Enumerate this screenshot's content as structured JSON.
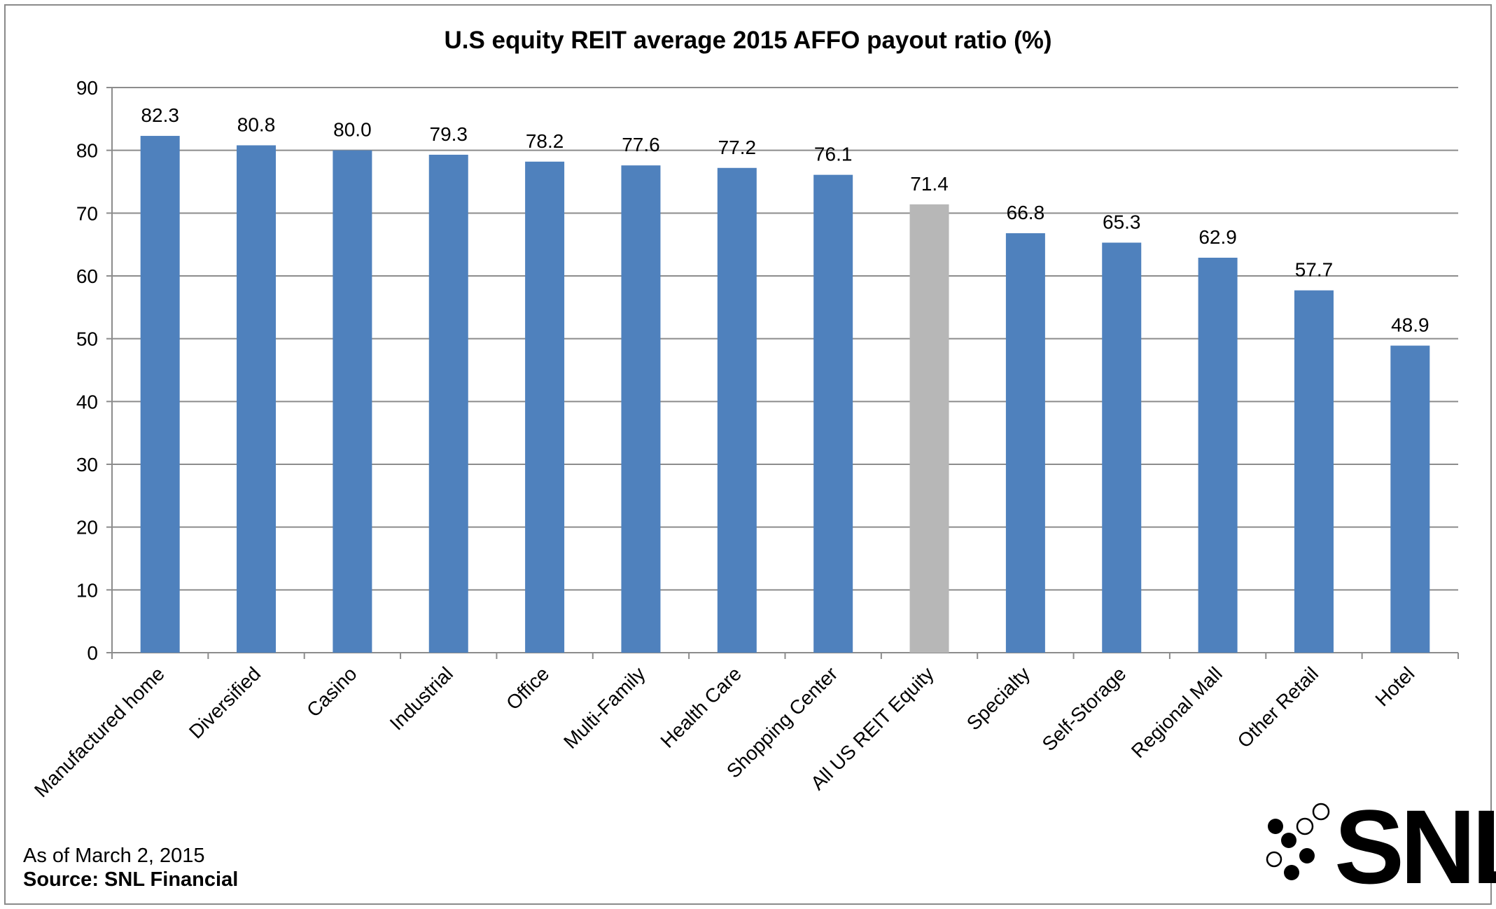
{
  "chart_data": {
    "type": "bar",
    "title": "U.S equity REIT average 2015 AFFO payout ratio (%)",
    "categories": [
      "Manufactured home",
      "Diversified",
      "Casino",
      "Industrial",
      "Office",
      "Multi-Family",
      "Health Care",
      "Shopping Center",
      "All US REIT Equity",
      "Specialty",
      "Self-Storage",
      "Regional Mall",
      "Other Retail",
      "Hotel"
    ],
    "values": [
      82.3,
      80.8,
      80.0,
      79.3,
      78.2,
      77.6,
      77.2,
      76.1,
      71.4,
      66.8,
      65.3,
      62.9,
      57.7,
      48.9
    ],
    "value_labels": [
      "82.3",
      "80.8",
      "80.0",
      "79.3",
      "78.2",
      "77.6",
      "77.2",
      "76.1",
      "71.4",
      "66.8",
      "65.3",
      "62.9",
      "57.7",
      "48.9"
    ],
    "highlight_category": "All US REIT Equity",
    "ylim": [
      0,
      90
    ],
    "yticks": [
      0,
      10,
      20,
      30,
      40,
      50,
      60,
      70,
      80,
      90
    ],
    "grid": true,
    "colors": {
      "bar": "#4f81bd",
      "highlight": "#b7b7b7",
      "grid": "#8c8c8c"
    }
  },
  "footer": {
    "note": "As of March 2, 2015",
    "source": "Source: SNL Financial"
  },
  "logo": {
    "text": "SNL"
  }
}
